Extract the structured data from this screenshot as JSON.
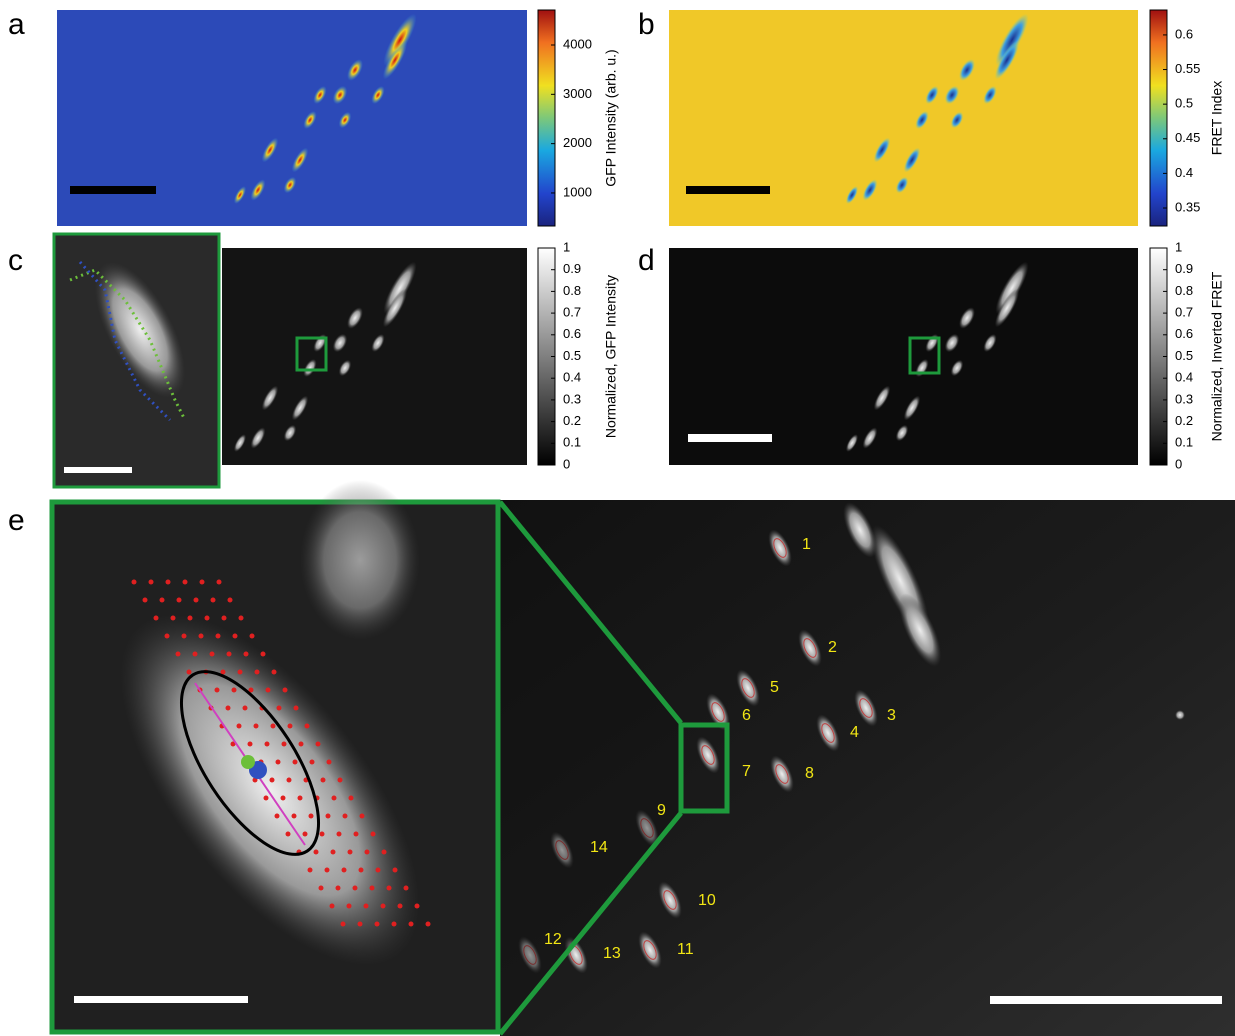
{
  "panels": [
    {
      "label": "a",
      "colorbar": {
        "label": "GFP Intensity (arb. u.)",
        "lim": [
          330,
          4710
        ],
        "ticks": [
          1000,
          2000,
          3000,
          4000
        ]
      }
    },
    {
      "label": "b",
      "colorbar": {
        "label": "FRET Index",
        "lim": [
          0.324,
          0.636
        ],
        "ticks": [
          0.35,
          0.4,
          0.45,
          0.5,
          0.55,
          0.6
        ]
      }
    },
    {
      "label": "c",
      "colorbar": {
        "label": "Normalized, GFP Intensity",
        "lim": [
          0,
          1
        ],
        "ticks": [
          0,
          0.1,
          0.2,
          0.3,
          0.4,
          0.5,
          0.6,
          0.7,
          0.8,
          0.9,
          1
        ]
      }
    },
    {
      "label": "d",
      "colorbar": {
        "label": "Normalized, Inverted FRET",
        "lim": [
          0,
          1
        ],
        "ticks": [
          0,
          0.1,
          0.2,
          0.3,
          0.4,
          0.5,
          0.6,
          0.7,
          0.8,
          0.9,
          1
        ]
      }
    },
    {
      "label": "e",
      "objects": [
        "1",
        "2",
        "3",
        "4",
        "5",
        "6",
        "7",
        "8",
        "9",
        "10",
        "11",
        "12",
        "13",
        "14"
      ]
    }
  ]
}
